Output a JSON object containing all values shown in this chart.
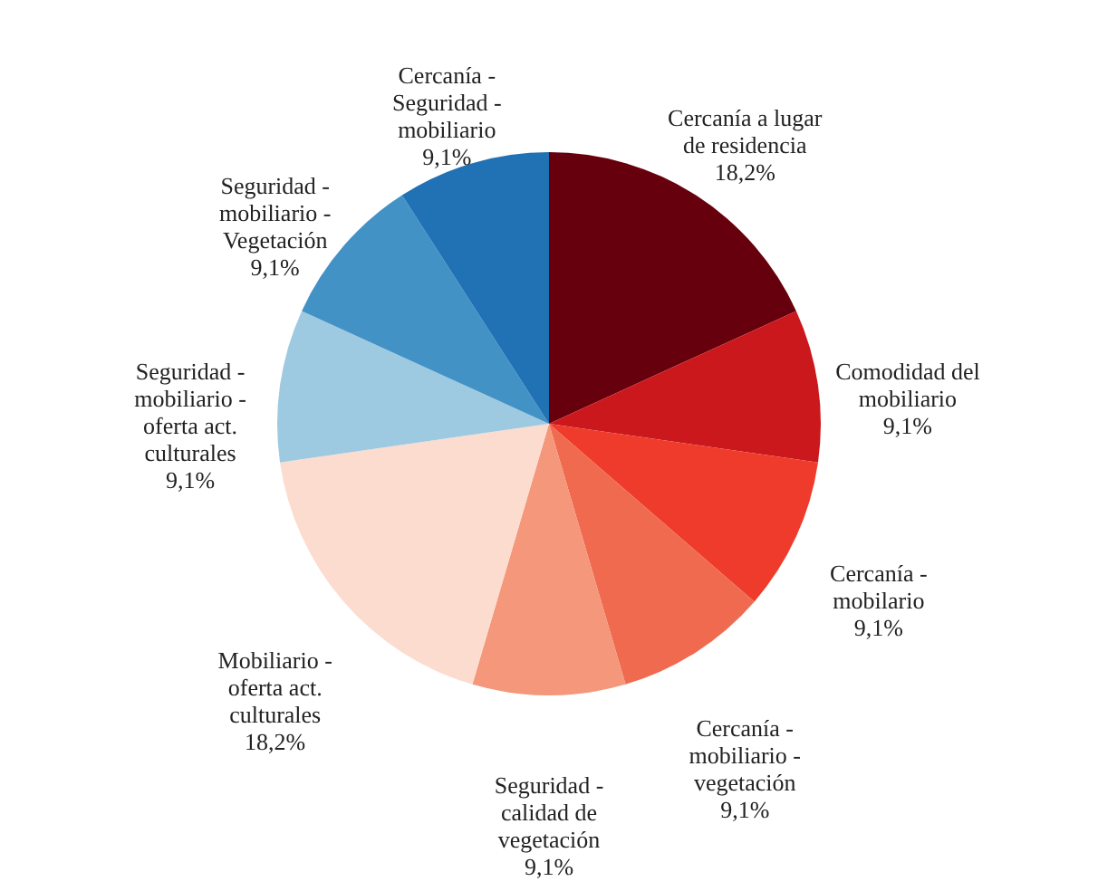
{
  "chart_data": {
    "type": "pie",
    "categories": [
      "Cercanía a lugar de residencia",
      "Comodidad del mobiliario",
      "Cercanía - mobilario",
      "Cercanía - mobiliario - vegetación",
      "Seguridad - calidad de vegetación",
      "Mobiliario - oferta act. culturales",
      "Seguridad - mobiliario - oferta act. culturales",
      "Seguridad - mobiliario - Vegetación",
      "Cercanía - Seguridad - mobiliario"
    ],
    "values": [
      18.2,
      9.1,
      9.1,
      9.1,
      9.1,
      18.2,
      9.1,
      9.1,
      9.1
    ],
    "value_labels": [
      "18,2%",
      "9,1%",
      "9,1%",
      "9,1%",
      "9,1%",
      "18,2%",
      "9,1%",
      "9,1%",
      "9,1%"
    ],
    "colors": [
      "#67000d",
      "#cb181d",
      "#ef3b2c",
      "#f06a4f",
      "#f4977a",
      "#fcdccf",
      "#9ecae1",
      "#4292c6",
      "#2171b5"
    ]
  }
}
